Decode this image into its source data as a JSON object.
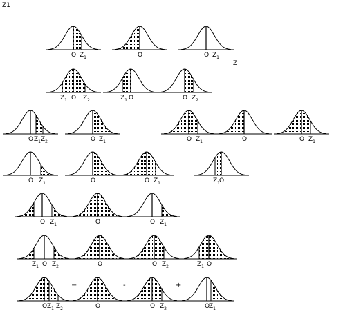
{
  "labels": {
    "top_left": "Z1",
    "right_marker": "Z",
    "zero": "O",
    "z1": "Z1",
    "z2": "Z2"
  },
  "operators": {
    "eq": "=",
    "minus": "-",
    "plus": "+"
  },
  "rows": [
    {
      "curves": [
        {
          "shade": [
            "zero",
            "z1"
          ],
          "lines": [
            "zero",
            "z1"
          ],
          "labels": [
            "zero",
            "z1"
          ]
        },
        {
          "shade": [
            "left",
            "zero"
          ],
          "lines": [
            "zero"
          ],
          "labels": [
            "zero"
          ]
        },
        {
          "shade": [],
          "lines": [
            "zero"
          ],
          "labels": [
            "zero",
            "z1"
          ]
        }
      ]
    },
    {
      "curves": [
        {
          "shade": [
            "z1",
            "z2"
          ],
          "lines": [
            "z1",
            "zero",
            "z2"
          ],
          "labels": [
            "z1",
            "zero",
            "z2"
          ]
        },
        {
          "shade": [
            "z1",
            "zero"
          ],
          "lines": [
            "z1",
            "zero"
          ],
          "labels": [
            "z1",
            "zero"
          ]
        },
        {
          "shade": [
            "zero",
            "z2"
          ],
          "lines": [
            "zero",
            "z2"
          ],
          "labels": [
            "zero",
            "z2"
          ]
        }
      ]
    },
    {
      "curves": [
        {
          "shade": [
            "z1",
            "z2"
          ],
          "lines": [
            "zero",
            "z1",
            "z2"
          ],
          "labels": [
            "zero",
            "z1",
            "z2"
          ]
        },
        {
          "shade": [
            "zero",
            "right"
          ],
          "lines": [
            "zero"
          ],
          "labels": [
            "zero",
            "z1"
          ]
        },
        {
          "shade": [
            "left",
            "z1"
          ],
          "lines": [
            "zero",
            "z1"
          ],
          "labels": [
            "zero",
            "z1"
          ]
        },
        {
          "shade": [
            "left",
            "zero"
          ],
          "lines": [
            "zero"
          ],
          "labels": [
            "zero"
          ]
        },
        {
          "shade": [
            "left",
            "z1"
          ],
          "lines": [
            "zero",
            "z1"
          ],
          "labels": [
            "zero",
            "z1"
          ]
        }
      ]
    },
    {
      "curves": [
        {
          "shade": [
            "z1",
            "right"
          ],
          "lines": [
            "zero",
            "z1"
          ],
          "labels": [
            "zero",
            "z1"
          ]
        },
        {
          "shade": [
            "zero",
            "right"
          ],
          "lines": [
            "zero"
          ],
          "labels": [
            "zero"
          ]
        },
        {
          "shade": [
            "left",
            "z1"
          ],
          "lines": [
            "zero",
            "z1"
          ],
          "labels": [
            "zero",
            "z1"
          ]
        },
        {
          "shade": [
            "z1",
            "zero"
          ],
          "lines": [
            "z1",
            "zero"
          ],
          "labels": [
            "z1",
            "zero"
          ]
        }
      ]
    },
    {
      "curves": [
        {
          "shade": [
            "left",
            "z1n",
            "z1",
            "right"
          ],
          "lines": [
            "z1n",
            "zero",
            "z1"
          ],
          "labels": [
            "zero",
            "z1"
          ]
        },
        {
          "shade": [
            "left",
            "right"
          ],
          "lines": [
            "zero"
          ],
          "labels": [
            "zero"
          ]
        },
        {
          "shade": [
            "z1",
            "right"
          ],
          "lines": [
            "zero",
            "z1"
          ],
          "labels": [
            "zero",
            "z1"
          ]
        }
      ]
    },
    {
      "curves": [
        {
          "shade": [
            "left",
            "z1",
            "z2",
            "right"
          ],
          "lines": [
            "z1",
            "zero",
            "z2"
          ],
          "labels": [
            "z1",
            "zero",
            "z2"
          ]
        },
        {
          "shade": [
            "left",
            "right"
          ],
          "lines": [
            "zero"
          ],
          "labels": [
            "zero"
          ]
        },
        {
          "shade": [
            "left",
            "z2"
          ],
          "lines": [
            "zero",
            "z2"
          ],
          "labels": [
            "zero",
            "z2"
          ]
        },
        {
          "shade": [
            "z1",
            "right"
          ],
          "lines": [
            "z1",
            "zero"
          ],
          "labels": [
            "z1",
            "zero"
          ]
        }
      ]
    },
    {
      "curves": [
        {
          "shade": [
            "left",
            "z2"
          ],
          "lines": [
            "zero",
            "z1",
            "z2"
          ],
          "labels": [
            "zero",
            "z1",
            "z2"
          ]
        },
        {
          "shade": [
            "left",
            "right"
          ],
          "lines": [
            "zero"
          ],
          "labels": [
            "zero"
          ]
        },
        {
          "shade": [
            "left",
            "z2"
          ],
          "lines": [
            "zero",
            "z2"
          ],
          "labels": [
            "zero",
            "z2"
          ]
        },
        {
          "shade": [
            "z1",
            "right"
          ],
          "lines": [
            "zero",
            "z1"
          ],
          "labels": [
            "zero",
            "z1"
          ]
        }
      ]
    }
  ]
}
